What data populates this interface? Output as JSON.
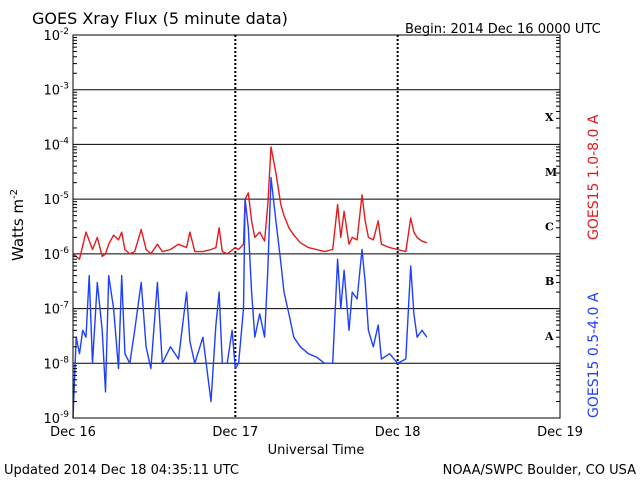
{
  "title": "GOES Xray Flux (5 minute data)",
  "begin": "Begin:  2014 Dec 16 0000 UTC",
  "updated": "Updated 2014 Dec 18 04:35:11 UTC",
  "credit": "NOAA/SWPC Boulder, CO USA",
  "colors": {
    "long": "#e41a1c",
    "short": "#1f3fff",
    "axis": "#000000"
  },
  "chart_data": {
    "type": "line",
    "xlabel": "Universal Time",
    "ylabel": "Watts m",
    "ylabel_sup": "-2",
    "ylog": true,
    "ylim": [
      1e-09,
      0.01
    ],
    "xlim": [
      0,
      3
    ],
    "x_unit": "days since 2014 Dec 16 00:00 UTC",
    "x_ticks": [
      {
        "x": 0,
        "label": "Dec 16"
      },
      {
        "x": 1,
        "label": "Dec 17"
      },
      {
        "x": 2,
        "label": "Dec 18"
      },
      {
        "x": 3,
        "label": "Dec 19"
      }
    ],
    "y_ticks": [
      {
        "base": "10",
        "exp": "-9"
      },
      {
        "base": "10",
        "exp": "-8"
      },
      {
        "base": "10",
        "exp": "-7"
      },
      {
        "base": "10",
        "exp": "-6"
      },
      {
        "base": "10",
        "exp": "-5"
      },
      {
        "base": "10",
        "exp": "-4"
      },
      {
        "base": "10",
        "exp": "-3"
      },
      {
        "base": "10",
        "exp": "-2"
      }
    ],
    "flare_classes": [
      "A",
      "B",
      "C",
      "M",
      "X"
    ],
    "series": [
      {
        "name": "GOES15 1.0-8.0 A",
        "color": "#e41a1c",
        "x": [
          0,
          0.04,
          0.08,
          0.12,
          0.15,
          0.18,
          0.2,
          0.22,
          0.25,
          0.28,
          0.3,
          0.32,
          0.35,
          0.38,
          0.42,
          0.45,
          0.48,
          0.52,
          0.55,
          0.6,
          0.65,
          0.7,
          0.72,
          0.75,
          0.8,
          0.85,
          0.88,
          0.9,
          0.92,
          0.95,
          1.0,
          1.02,
          1.05,
          1.06,
          1.08,
          1.1,
          1.12,
          1.15,
          1.18,
          1.2,
          1.22,
          1.25,
          1.28,
          1.3,
          1.33,
          1.36,
          1.4,
          1.45,
          1.5,
          1.55,
          1.6,
          1.63,
          1.65,
          1.67,
          1.7,
          1.72,
          1.75,
          1.78,
          1.8,
          1.82,
          1.85,
          1.88,
          1.9,
          1.95,
          2.0,
          2.05,
          2.08,
          2.1,
          2.12,
          2.15,
          2.18
        ],
        "y": [
          1e-06,
          8e-07,
          2.5e-06,
          1.2e-06,
          2e-06,
          9e-07,
          1e-06,
          1.5e-06,
          2.2e-06,
          1.8e-06,
          2.5e-06,
          1.2e-06,
          1e-06,
          1.1e-06,
          2.8e-06,
          1.2e-06,
          1e-06,
          1.5e-06,
          1.1e-06,
          1.2e-06,
          1.5e-06,
          1.3e-06,
          2.5e-06,
          1.1e-06,
          1.1e-06,
          1.2e-06,
          1.3e-06,
          3e-06,
          1.1e-06,
          1e-06,
          1.3e-06,
          1.2e-06,
          1.5e-06,
          1e-05,
          1.3e-05,
          4e-06,
          2e-06,
          2.5e-06,
          1.7e-06,
          8e-06,
          9e-05,
          3e-05,
          8e-06,
          5e-06,
          3e-06,
          2.2e-06,
          1.6e-06,
          1.3e-06,
          1.2e-06,
          1.1e-06,
          1.2e-06,
          8e-06,
          2e-06,
          6e-06,
          1.5e-06,
          2e-06,
          1.8e-06,
          1.2e-05,
          4e-06,
          2e-06,
          1.8e-06,
          4e-06,
          1.5e-06,
          1.3e-06,
          1.2e-06,
          1.1e-06,
          4.5e-06,
          2.5e-06,
          2e-06,
          1.7e-06,
          1.6e-06
        ]
      },
      {
        "name": "GOES15 0.5-4.0 A",
        "color": "#1f3fff",
        "x": [
          0,
          0.02,
          0.04,
          0.06,
          0.08,
          0.1,
          0.12,
          0.15,
          0.18,
          0.2,
          0.22,
          0.25,
          0.28,
          0.3,
          0.32,
          0.35,
          0.38,
          0.42,
          0.45,
          0.48,
          0.52,
          0.55,
          0.6,
          0.65,
          0.7,
          0.72,
          0.75,
          0.8,
          0.85,
          0.88,
          0.9,
          0.92,
          0.95,
          0.98,
          1.0,
          1.02,
          1.05,
          1.06,
          1.08,
          1.1,
          1.12,
          1.15,
          1.18,
          1.2,
          1.22,
          1.25,
          1.28,
          1.3,
          1.33,
          1.36,
          1.4,
          1.45,
          1.5,
          1.55,
          1.6,
          1.63,
          1.65,
          1.67,
          1.7,
          1.72,
          1.75,
          1.78,
          1.8,
          1.82,
          1.85,
          1.88,
          1.9,
          1.95,
          2.0,
          2.05,
          2.08,
          2.1,
          2.12,
          2.15,
          2.18
        ],
        "y": [
          1e-09,
          3e-08,
          1.5e-08,
          4e-08,
          3e-08,
          4e-07,
          1e-08,
          3e-07,
          4e-08,
          3e-09,
          4e-07,
          1e-07,
          8e-09,
          4e-07,
          1.5e-08,
          1e-08,
          4e-08,
          3e-07,
          2e-08,
          8e-09,
          3e-07,
          1e-08,
          2e-08,
          1.2e-08,
          2e-07,
          2.5e-08,
          1e-08,
          3e-08,
          2e-09,
          5e-08,
          2e-07,
          1e-08,
          1e-08,
          4e-08,
          8e-09,
          1e-08,
          1e-07,
          1e-05,
          3e-06,
          2e-07,
          3e-08,
          8e-08,
          3e-08,
          5e-07,
          2.5e-05,
          4e-06,
          7e-07,
          2e-07,
          8e-08,
          3e-08,
          2e-08,
          1.5e-08,
          1.3e-08,
          1e-08,
          1e-08,
          8e-07,
          1e-07,
          5e-07,
          4e-08,
          2e-07,
          1.5e-07,
          1.2e-06,
          3e-07,
          4e-08,
          2e-08,
          5e-08,
          1.2e-08,
          1.5e-08,
          1e-08,
          1.2e-08,
          6e-07,
          8e-08,
          3e-08,
          4e-08,
          3e-08
        ]
      }
    ]
  }
}
